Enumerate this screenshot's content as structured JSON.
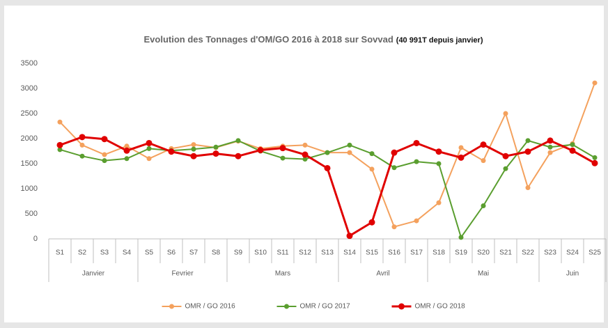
{
  "chart_data": {
    "type": "line",
    "title": "Evolution des Tonnages d'OM/GO 2016 à 2018 sur Sovvad",
    "title_note": "(40 991T depuis janvier)",
    "categories": [
      "S1",
      "S2",
      "S3",
      "S4",
      "S5",
      "S6",
      "S7",
      "S8",
      "S9",
      "S10",
      "S11",
      "S12",
      "S13",
      "S14",
      "S15",
      "S16",
      "S17",
      "S18",
      "S19",
      "S20",
      "S21",
      "S22",
      "S23",
      "S24",
      "S25"
    ],
    "groups": [
      {
        "label": "Janvier",
        "span": 4
      },
      {
        "label": "Fevrier",
        "span": 4
      },
      {
        "label": "Mars",
        "span": 5
      },
      {
        "label": "Avril",
        "span": 4
      },
      {
        "label": "Mai",
        "span": 5
      },
      {
        "label": "Juin",
        "span": 3
      }
    ],
    "series": [
      {
        "name": "OMR / GO 2016",
        "color": "#f4a15d",
        "width": 2,
        "values": [
          2330,
          1870,
          1680,
          1850,
          1600,
          1800,
          1880,
          1820,
          1950,
          1800,
          1850,
          1870,
          1720,
          1720,
          1390,
          240,
          360,
          720,
          1820,
          1560,
          2500,
          1020,
          1720,
          1900,
          3110
        ]
      },
      {
        "name": "OMR / GO 2017",
        "color": "#5a9e2f",
        "width": 2,
        "values": [
          1780,
          1650,
          1560,
          1600,
          1800,
          1760,
          1790,
          1830,
          1960,
          1750,
          1610,
          1590,
          1720,
          1870,
          1700,
          1420,
          1540,
          1500,
          30,
          660,
          1400,
          1960,
          1830,
          1880,
          1620
        ]
      },
      {
        "name": "OMR / GO 2018",
        "color": "#e00000",
        "width": 3,
        "values": [
          1870,
          2030,
          1990,
          1760,
          1910,
          1740,
          1650,
          1700,
          1650,
          1770,
          1810,
          1680,
          1410,
          60,
          330,
          1720,
          1910,
          1740,
          1620,
          1880,
          1650,
          1740,
          1960,
          1760,
          1510
        ]
      }
    ],
    "ylim": [
      0,
      3500
    ],
    "yticks": [
      0,
      500,
      1000,
      1500,
      2000,
      2500,
      3000,
      3500
    ],
    "grid": false,
    "legend": "bottom"
  }
}
